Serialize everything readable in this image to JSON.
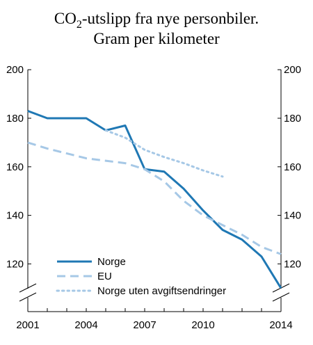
{
  "chart_data": {
    "type": "line",
    "title_prefix": "CO",
    "title_subscript": "2",
    "title_suffix": "-utslipp fra nye personbiler.",
    "subtitle": "Gram per kilometer",
    "xlabel": "",
    "ylabel": "",
    "x_ticks": [
      "2001",
      "2004",
      "2007",
      "2010",
      "2014"
    ],
    "y_ticks": [
      "120",
      "140",
      "160",
      "180",
      "200"
    ],
    "xlim": [
      2001,
      2014
    ],
    "ylim": [
      108,
      200
    ],
    "axis_break": true,
    "grid": false,
    "legend_position": "bottom-left",
    "series": [
      {
        "name": "Norge",
        "style": "solid",
        "color": "#1f78b4",
        "x": [
          2001,
          2002,
          2003,
          2004,
          2005,
          2006,
          2007,
          2008,
          2009,
          2010,
          2011,
          2012,
          2013,
          2014
        ],
        "y": [
          183,
          180,
          180,
          180,
          175,
          177,
          159,
          158,
          151,
          142,
          134,
          130,
          123,
          110
        ]
      },
      {
        "name": "EU",
        "style": "dashed",
        "color": "#a6c8e6",
        "x": [
          2001,
          2002,
          2003,
          2004,
          2005,
          2006,
          2007,
          2008,
          2009,
          2010,
          2011,
          2012,
          2013,
          2014
        ],
        "y": [
          170,
          167.5,
          165.5,
          163.5,
          162.5,
          161.5,
          159,
          154,
          146,
          140,
          136,
          132,
          127,
          124
        ]
      },
      {
        "name": "Norge uten avgiftsendringer",
        "style": "dotted",
        "color": "#a6c8e6",
        "x": [
          2005,
          2006,
          2007,
          2008,
          2009,
          2010,
          2011
        ],
        "y": [
          175,
          172,
          167,
          164,
          161.5,
          158.5,
          156
        ]
      }
    ]
  }
}
